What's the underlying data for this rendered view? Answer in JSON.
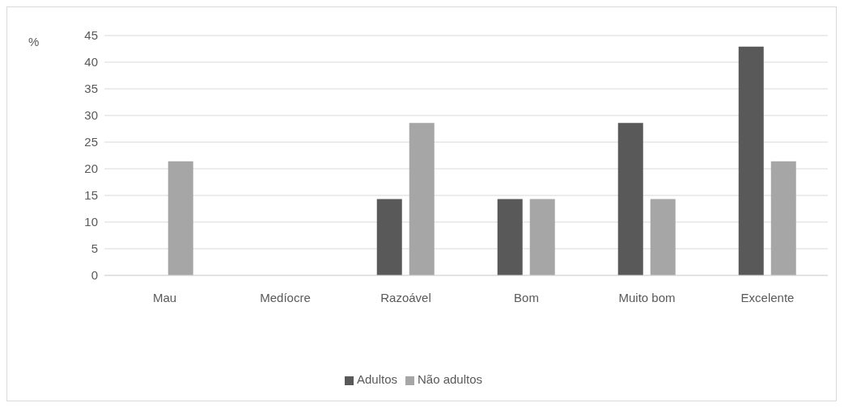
{
  "chart_data": {
    "type": "bar",
    "ylabel": "%",
    "categories": [
      "Mau",
      "Medíocre",
      "Razoável",
      "Bom",
      "Muito bom",
      "Excelente"
    ],
    "series": [
      {
        "name": "Adultos",
        "color": "#595959",
        "values": [
          0,
          0,
          14.3,
          14.3,
          28.6,
          42.9
        ]
      },
      {
        "name": "Não adultos",
        "color": "#a6a6a6",
        "values": [
          21.4,
          0,
          28.6,
          14.3,
          14.3,
          21.4
        ]
      }
    ],
    "ylim": [
      0,
      45
    ],
    "yticks": [
      0,
      5,
      10,
      15,
      20,
      25,
      30,
      35,
      40,
      45
    ],
    "grid": "y",
    "legend": "bottom"
  }
}
